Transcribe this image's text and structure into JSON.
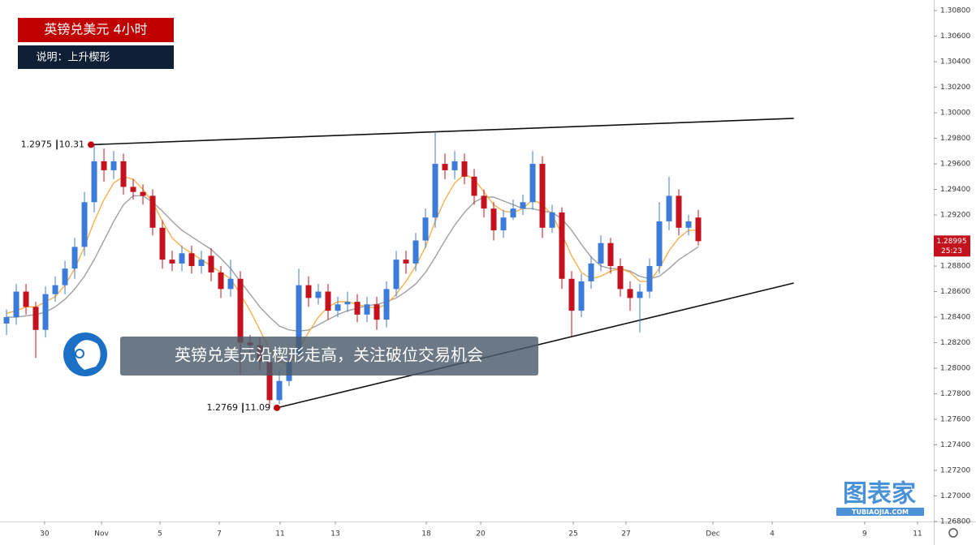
{
  "chart_data": {
    "type": "candlestick",
    "title": "英镑兑美元 4小时",
    "subtitle": "说明：上升楔形",
    "annotation": "英镑兑美元沿楔形走高，关注破位交易机会",
    "watermark": "图表家",
    "watermark_sub": "TUBIAOJIA.COM",
    "up_color": "#3d7bd9",
    "down_color": "#c3121e",
    "ma_fast_color": "#f5b04e",
    "ma_slow_color": "#a0a0a0",
    "open": [
      1.2835,
      1.284,
      1.286,
      1.2848,
      1.283,
      1.2858,
      1.2865,
      1.2878,
      1.2895,
      1.293,
      1.2962,
      1.2955,
      1.2962,
      1.2942,
      1.2938,
      1.2935,
      1.291,
      1.2885,
      1.2882,
      1.289,
      1.288,
      1.2888,
      1.2875,
      1.2862,
      1.287,
      1.282,
      1.2818,
      1.2805,
      1.2775,
      1.279,
      1.281,
      1.2865,
      1.2855,
      1.286,
      1.2845,
      1.285,
      1.2852,
      1.2842,
      1.285,
      1.2838,
      1.2862,
      1.2885,
      1.2882,
      1.29,
      1.2918,
      1.296,
      1.2955,
      1.2962,
      1.295,
      1.2935,
      1.2925,
      1.2908,
      1.2918,
      1.2925,
      1.293,
      1.296,
      1.291,
      1.2922,
      1.287,
      1.2845,
      1.2868,
      1.2882,
      1.2898,
      1.288,
      1.2862,
      1.2855,
      1.286,
      1.288,
      1.2915,
      1.2935,
      1.291,
      1.2918
    ],
    "high": [
      1.2846,
      1.2866,
      1.2866,
      1.2852,
      1.2864,
      1.2872,
      1.2884,
      1.2902,
      1.2938,
      1.2975,
      1.2972,
      1.297,
      1.2968,
      1.2948,
      1.2944,
      1.294,
      1.2916,
      1.2892,
      1.2896,
      1.2896,
      1.2892,
      1.2894,
      1.288,
      1.2885,
      1.2876,
      1.2826,
      1.2824,
      1.281,
      1.2798,
      1.2812,
      1.2878,
      1.2872,
      1.2866,
      1.2866,
      1.2856,
      1.286,
      1.2858,
      1.2856,
      1.2856,
      1.2868,
      1.2892,
      1.2892,
      1.2906,
      1.2925,
      1.2985,
      1.2968,
      1.297,
      1.2968,
      1.2956,
      1.294,
      1.293,
      1.2924,
      1.2932,
      1.2936,
      1.297,
      1.2966,
      1.2928,
      1.2926,
      1.2876,
      1.2874,
      1.2888,
      1.2904,
      1.2902,
      1.2886,
      1.2868,
      1.2866,
      1.2886,
      1.293,
      1.295,
      1.294,
      1.292,
      1.2924
    ],
    "low": [
      1.2826,
      1.2834,
      1.2842,
      1.2808,
      1.2824,
      1.2852,
      1.2858,
      1.287,
      1.2888,
      1.2922,
      1.2946,
      1.2948,
      1.2936,
      1.2932,
      1.2928,
      1.2904,
      1.2878,
      1.2876,
      1.2876,
      1.2874,
      1.2874,
      1.2868,
      1.2855,
      1.2856,
      1.2795,
      1.281,
      1.2798,
      1.2769,
      1.2772,
      1.2786,
      1.2804,
      1.2848,
      1.285,
      1.2838,
      1.284,
      1.2844,
      1.2836,
      1.2836,
      1.283,
      1.2832,
      1.2856,
      1.2874,
      1.2876,
      1.2894,
      1.291,
      1.2948,
      1.2948,
      1.2944,
      1.2928,
      1.2918,
      1.29,
      1.2902,
      1.2916,
      1.292,
      1.2924,
      1.2902,
      1.2906,
      1.2862,
      1.2825,
      1.284,
      1.2862,
      1.2876,
      1.2874,
      1.2856,
      1.2845,
      1.2828,
      1.2855,
      1.2874,
      1.2908,
      1.2904,
      1.2904,
      1.2896
    ],
    "close": [
      1.284,
      1.286,
      1.2848,
      1.283,
      1.2858,
      1.2865,
      1.2878,
      1.2895,
      1.293,
      1.2962,
      1.2955,
      1.2962,
      1.2942,
      1.2938,
      1.2935,
      1.291,
      1.2885,
      1.2882,
      1.289,
      1.288,
      1.2885,
      1.2875,
      1.2862,
      1.287,
      1.282,
      1.2818,
      1.2805,
      1.2775,
      1.279,
      1.2805,
      1.2865,
      1.2855,
      1.286,
      1.2845,
      1.285,
      1.2852,
      1.2842,
      1.285,
      1.2838,
      1.2862,
      1.2885,
      1.2882,
      1.29,
      1.2918,
      1.296,
      1.2955,
      1.2962,
      1.295,
      1.2935,
      1.2925,
      1.2908,
      1.2918,
      1.2925,
      1.293,
      1.296,
      1.291,
      1.2922,
      1.287,
      1.2845,
      1.2868,
      1.2882,
      1.2898,
      1.288,
      1.2862,
      1.2855,
      1.286,
      1.288,
      1.2915,
      1.2935,
      1.291,
      1.2915,
      1.28995
    ],
    "ma_fast": [
      1.2843,
      1.2845,
      1.2848,
      1.2848,
      1.2852,
      1.2856,
      1.2865,
      1.2878,
      1.2895,
      1.2915,
      1.2932,
      1.2945,
      1.295,
      1.2948,
      1.294,
      1.293,
      1.2915,
      1.2902,
      1.2895,
      1.289,
      1.2885,
      1.288,
      1.2875,
      1.287,
      1.2858,
      1.2845,
      1.283,
      1.2815,
      1.2805,
      1.2803,
      1.2815,
      1.2828,
      1.284,
      1.2848,
      1.2852,
      1.2852,
      1.285,
      1.2848,
      1.2847,
      1.285,
      1.2858,
      1.2868,
      1.288,
      1.2895,
      1.2915,
      1.2932,
      1.2945,
      1.2952,
      1.2948,
      1.2938,
      1.2928,
      1.2923,
      1.2922,
      1.2925,
      1.2932,
      1.2928,
      1.292,
      1.2905,
      1.2888,
      1.2875,
      1.287,
      1.2872,
      1.2876,
      1.2878,
      1.2875,
      1.2868,
      1.2868,
      1.2878,
      1.2892,
      1.2902,
      1.2908,
      1.2908
    ],
    "ma_slow": [
      1.284,
      1.284,
      1.2841,
      1.2842,
      1.2844,
      1.2848,
      1.2854,
      1.2862,
      1.2872,
      1.2885,
      1.29,
      1.2915,
      1.2928,
      1.2935,
      1.2935,
      1.293,
      1.2923,
      1.2915,
      1.2908,
      1.2903,
      1.2898,
      1.2893,
      1.2886,
      1.2878,
      1.2868,
      1.2858,
      1.2848,
      1.284,
      1.2833,
      1.283,
      1.2829,
      1.283,
      1.2834,
      1.2838,
      1.2842,
      1.2845,
      1.2847,
      1.2849,
      1.285,
      1.2852,
      1.2855,
      1.286,
      1.2866,
      1.2875,
      1.2887,
      1.29,
      1.2912,
      1.2922,
      1.293,
      1.2934,
      1.2934,
      1.2931,
      1.2928,
      1.2925,
      1.2925,
      1.2923,
      1.2922,
      1.2917,
      1.2908,
      1.2897,
      1.2887,
      1.288,
      1.2878,
      1.2878,
      1.2876,
      1.2872,
      1.287,
      1.2872,
      1.2878,
      1.2885,
      1.289,
      1.2895
    ],
    "last_price_label": "1.28995",
    "countdown": "25:23",
    "points": [
      {
        "x": 8.67,
        "y": 1.2975,
        "date_label": "10.31"
      },
      {
        "x": 27.75,
        "y": 1.2769,
        "date_label": "11.09"
      }
    ],
    "trend_lines": [
      {
        "x": [
          8.67,
          80.8
        ],
        "y": [
          1.2975,
          1.29956
        ]
      },
      {
        "x": [
          27.75,
          80.8
        ],
        "y": [
          1.2769,
          1.28667
        ]
      }
    ],
    "xlim": [
      -0.67,
      95.17
    ],
    "xticks": [
      {
        "value": 3.9,
        "label": "30"
      },
      {
        "value": 9.75,
        "label": "Nov"
      },
      {
        "value": 15.75,
        "label": "5"
      },
      {
        "value": 21.83,
        "label": "7"
      },
      {
        "value": 28.08,
        "label": "11"
      },
      {
        "value": 33.75,
        "label": "13"
      },
      {
        "value": 43.08,
        "label": "18"
      },
      {
        "value": 48.67,
        "label": "20"
      },
      {
        "value": 58.17,
        "label": "25"
      },
      {
        "value": 63.58,
        "label": "27"
      },
      {
        "value": 72.5,
        "label": "Dec"
      },
      {
        "value": 78.58,
        "label": "4"
      },
      {
        "value": 88.08,
        "label": "9"
      },
      {
        "value": 93.5,
        "label": "11"
      }
    ],
    "ylim": [
      1.268,
      1.30883
    ],
    "yticks": [
      {
        "value": 1.268,
        "label": "1.26800"
      },
      {
        "value": 1.27,
        "label": "1.27000"
      },
      {
        "value": 1.272,
        "label": "1.27200"
      },
      {
        "value": 1.274,
        "label": "1.27400"
      },
      {
        "value": 1.276,
        "label": "1.27600"
      },
      {
        "value": 1.278,
        "label": "1.27800"
      },
      {
        "value": 1.28,
        "label": "1.28000"
      },
      {
        "value": 1.282,
        "label": "1.28200"
      },
      {
        "value": 1.284,
        "label": "1.28400"
      },
      {
        "value": 1.286,
        "label": "1.28600"
      },
      {
        "value": 1.288,
        "label": "1.28800"
      },
      {
        "value": 1.29,
        "label": "1.29000"
      },
      {
        "value": 1.292,
        "label": "1.29200"
      },
      {
        "value": 1.294,
        "label": "1.29400"
      },
      {
        "value": 1.296,
        "label": "1.29600"
      },
      {
        "value": 1.298,
        "label": "1.29800"
      },
      {
        "value": 1.3,
        "label": "1.30000"
      },
      {
        "value": 1.302,
        "label": "1.30200"
      },
      {
        "value": 1.304,
        "label": "1.30400"
      },
      {
        "value": 1.306,
        "label": "1.30600"
      },
      {
        "value": 1.308,
        "label": "1.30800"
      }
    ]
  }
}
